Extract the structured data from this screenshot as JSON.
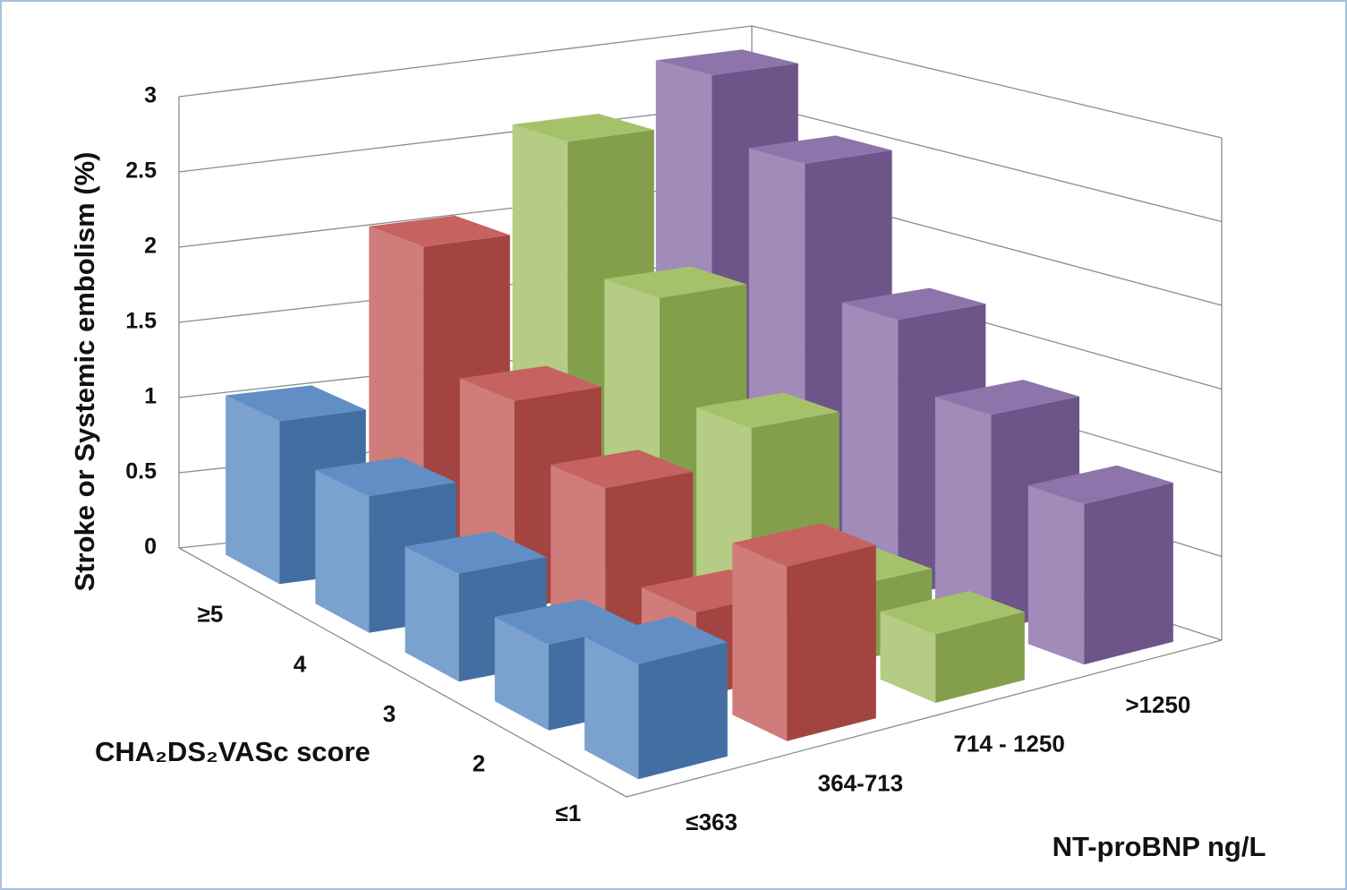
{
  "chart_data": {
    "type": "bar3d",
    "y_title": "Stroke or Systemic embolism (%)",
    "x_title": "NT-proBNP ng/L",
    "z_title": "CHA₂DS₂VASc score",
    "categories": [
      "≤1",
      "2",
      "3",
      "4",
      "≥5"
    ],
    "series": [
      {
        "name": "≤363",
        "color": "#4f81bd",
        "values": [
          0.65,
          0.5,
          0.65,
          0.85,
          1.05
        ]
      },
      {
        "name": "364-713",
        "color": "#c0504d",
        "values": [
          1.0,
          0.5,
          1.0,
          1.3,
          2.05
        ]
      },
      {
        "name": "714 - 1250",
        "color": "#9bbb59",
        "values": [
          0.4,
          0.45,
          1.2,
          1.8,
          2.6
        ]
      },
      {
        "name": ">1250",
        "color": "#8064a2",
        "values": [
          0.95,
          1.3,
          1.7,
          2.5,
          2.9
        ]
      }
    ],
    "ylim": [
      0,
      3
    ],
    "yticks": [
      0,
      0.5,
      1,
      1.5,
      2,
      2.5,
      3
    ],
    "grid": true
  }
}
